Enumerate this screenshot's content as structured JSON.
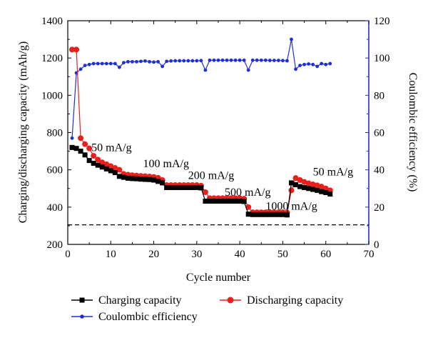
{
  "chart_data": {
    "type": "line",
    "xlabel": "Cycle number",
    "ylabel_left": "Charging/discharging capacity (mAh/g)",
    "ylabel_right": "Coulombic efficiency (%)",
    "xlim": [
      0,
      70
    ],
    "ylim_left": [
      200,
      1400
    ],
    "ylim_right": [
      0,
      120
    ],
    "x_ticks": [
      0,
      10,
      20,
      30,
      40,
      50,
      60,
      70
    ],
    "y_left_ticks": [
      200,
      400,
      600,
      800,
      1000,
      1200,
      1400
    ],
    "y_right_ticks": [
      0,
      20,
      40,
      60,
      80,
      100,
      120
    ],
    "grid": false,
    "reference_line": {
      "axis": "left",
      "value": 305,
      "style": "dashed"
    },
    "annotations": [
      {
        "text": "50 mA/g",
        "x": 5.5,
        "y": 700
      },
      {
        "text": "100 mA/g",
        "x": 17.5,
        "y": 615
      },
      {
        "text": "200 mA/g",
        "x": 28,
        "y": 550
      },
      {
        "text": "500 mA/g",
        "x": 36.5,
        "y": 460
      },
      {
        "text": "1000 mA/g",
        "x": 46,
        "y": 385
      },
      {
        "text": "50 mA/g",
        "x": 57,
        "y": 570
      }
    ],
    "series": [
      {
        "name": "Charging capacity",
        "axis": "left",
        "color": "#000000",
        "marker": "square",
        "x": [
          1,
          2,
          3,
          4,
          5,
          6,
          7,
          8,
          9,
          10,
          11,
          12,
          13,
          14,
          15,
          16,
          17,
          18,
          19,
          20,
          21,
          22,
          23,
          24,
          25,
          26,
          27,
          28,
          29,
          30,
          31,
          32,
          33,
          34,
          35,
          36,
          37,
          38,
          39,
          40,
          41,
          42,
          43,
          44,
          45,
          46,
          47,
          48,
          49,
          50,
          51,
          52,
          53,
          54,
          55,
          56,
          57,
          58,
          59,
          60,
          61
        ],
        "values": [
          720,
          715,
          700,
          680,
          650,
          635,
          625,
          615,
          605,
          595,
          585,
          565,
          560,
          555,
          553,
          552,
          550,
          549,
          548,
          545,
          538,
          530,
          505,
          505,
          505,
          505,
          505,
          505,
          505,
          505,
          503,
          432,
          432,
          432,
          432,
          432,
          432,
          432,
          432,
          432,
          430,
          362,
          360,
          360,
          360,
          360,
          360,
          360,
          360,
          360,
          358,
          530,
          520,
          510,
          505,
          500,
          495,
          490,
          483,
          478,
          470
        ]
      },
      {
        "name": "Discharging capacity",
        "axis": "left",
        "color": "#e8201c",
        "marker": "circle",
        "x": [
          1,
          2,
          3,
          4,
          5,
          6,
          7,
          8,
          9,
          10,
          11,
          12,
          13,
          14,
          15,
          16,
          17,
          18,
          19,
          20,
          21,
          22,
          23,
          24,
          25,
          26,
          27,
          28,
          29,
          30,
          31,
          32,
          33,
          34,
          35,
          36,
          37,
          38,
          39,
          40,
          41,
          42,
          43,
          44,
          45,
          46,
          47,
          48,
          49,
          50,
          51,
          52,
          53,
          54,
          55,
          56,
          57,
          58,
          59,
          60,
          61
        ],
        "values": [
          1245,
          1245,
          770,
          738,
          715,
          675,
          655,
          640,
          630,
          620,
          610,
          600,
          578,
          574,
          571,
          569,
          567,
          566,
          564,
          562,
          557,
          545,
          518,
          518,
          518,
          518,
          518,
          518,
          518,
          518,
          515,
          480,
          448,
          448,
          448,
          448,
          448,
          448,
          448,
          448,
          445,
          400,
          372,
          372,
          372,
          372,
          372,
          372,
          372,
          372,
          370,
          490,
          556,
          545,
          535,
          528,
          522,
          517,
          510,
          500,
          490
        ]
      },
      {
        "name": "Coulombic efficiency",
        "axis": "right",
        "color": "#1f2ed6",
        "marker": "dot",
        "x": [
          1,
          2,
          3,
          4,
          5,
          6,
          7,
          8,
          9,
          10,
          11,
          12,
          13,
          14,
          15,
          16,
          17,
          18,
          19,
          20,
          21,
          22,
          23,
          24,
          25,
          26,
          27,
          28,
          29,
          30,
          31,
          32,
          33,
          34,
          35,
          36,
          37,
          38,
          39,
          40,
          41,
          42,
          43,
          44,
          45,
          46,
          47,
          48,
          49,
          50,
          51,
          52,
          53,
          54,
          55,
          56,
          57,
          58,
          59,
          60,
          61
        ],
        "values": [
          57,
          92,
          94,
          96,
          96.5,
          97,
          97,
          97,
          97,
          97,
          97,
          95,
          97.5,
          98,
          98,
          98,
          98.2,
          98.4,
          98,
          97.8,
          98,
          95.5,
          98.2,
          98.4,
          98.5,
          98.5,
          98.5,
          98.5,
          98.5,
          98.5,
          98.6,
          93.5,
          98.8,
          98.8,
          98.8,
          98.8,
          98.8,
          98.8,
          98.8,
          98.8,
          98.8,
          93.5,
          98.8,
          98.8,
          98.8,
          98.8,
          98.7,
          98.7,
          98.7,
          98.6,
          98.5,
          110,
          94,
          96,
          96.5,
          96.8,
          96.5,
          95.5,
          97,
          96.5,
          97
        ]
      }
    ],
    "legend": {
      "placement": "bottom",
      "entries": [
        "Charging capacity",
        "Discharging capacity",
        "Coulombic efficiency"
      ]
    }
  }
}
